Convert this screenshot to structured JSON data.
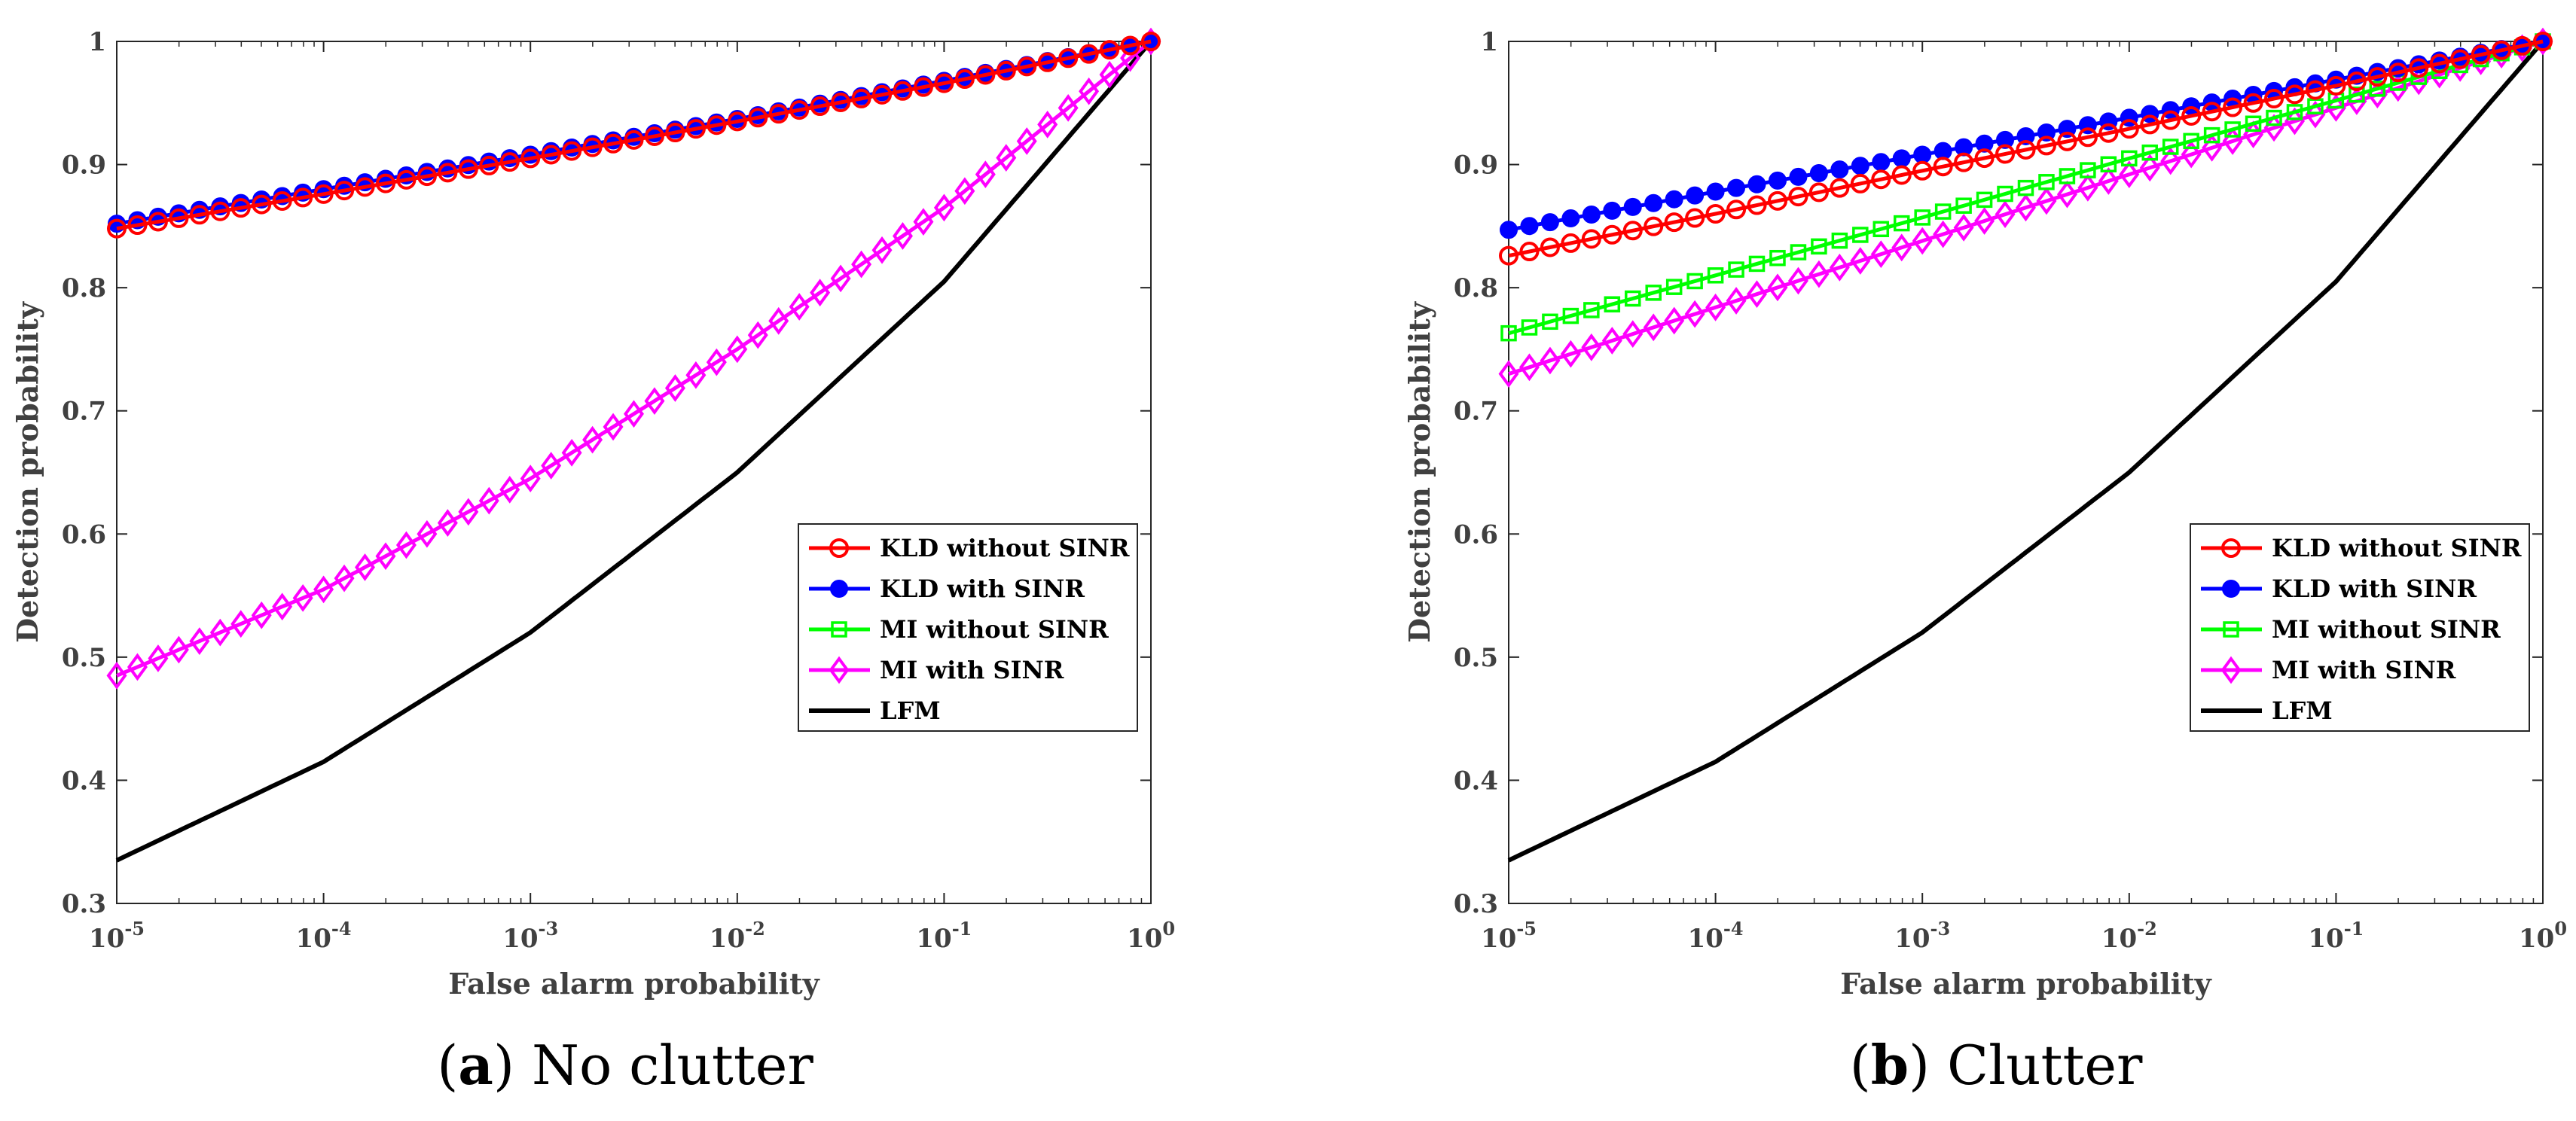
{
  "figure": {
    "captions": [
      {
        "letter": "a",
        "text": "No clutter"
      },
      {
        "letter": "b",
        "text": "Clutter"
      }
    ]
  },
  "colors": {
    "KLD without SINR": "#ff0000",
    "KLD with SINR": "#0000ff",
    "MI without SINR": "#00ff00",
    "MI with SINR": "#ff00ff",
    "LFM": "#000000",
    "axis": "#262626"
  },
  "chart_data": [
    {
      "type": "line",
      "panel": "a",
      "xscale": "log",
      "xlabel": "False alarm probability",
      "ylabel": "Detection probability",
      "xlim": [
        1e-05,
        1
      ],
      "ylim": [
        0.3,
        1
      ],
      "x_ticks": [
        {
          "base": "10",
          "exp": "-5"
        },
        {
          "base": "10",
          "exp": "-4"
        },
        {
          "base": "10",
          "exp": "-3"
        },
        {
          "base": "10",
          "exp": "-2"
        },
        {
          "base": "10",
          "exp": "-1"
        },
        {
          "base": "10",
          "exp": "0"
        }
      ],
      "y_ticks": [
        "0.3",
        "0.4",
        "0.5",
        "0.6",
        "0.7",
        "0.8",
        "0.9",
        "1"
      ],
      "legend_position": "lower-right",
      "series": [
        {
          "name": "KLD without SINR",
          "marker": "circle",
          "x": [
            1e-05,
            0.0001,
            0.001,
            0.01,
            0.1,
            1
          ],
          "y": [
            0.848,
            0.876,
            0.905,
            0.935,
            0.966,
            1.0
          ]
        },
        {
          "name": "KLD with SINR",
          "marker": "dot",
          "x": [
            1e-05,
            0.0001,
            0.001,
            0.01,
            0.1,
            1
          ],
          "y": [
            0.852,
            0.88,
            0.908,
            0.937,
            0.968,
            1.0
          ]
        },
        {
          "name": "MI without SINR",
          "marker": "square",
          "x": [],
          "y": []
        },
        {
          "name": "MI with SINR",
          "marker": "diamond",
          "x": [
            1e-05,
            0.0001,
            0.001,
            0.01,
            0.1,
            1
          ],
          "y": [
            0.485,
            0.555,
            0.645,
            0.75,
            0.865,
            1.0
          ]
        },
        {
          "name": "LFM",
          "marker": "none",
          "x": [
            1e-05,
            0.0001,
            0.001,
            0.01,
            0.1,
            1
          ],
          "y": [
            0.335,
            0.415,
            0.52,
            0.65,
            0.805,
            1.0
          ]
        }
      ]
    },
    {
      "type": "line",
      "panel": "b",
      "xscale": "log",
      "xlabel": "False alarm probability",
      "ylabel": "Detection probability",
      "xlim": [
        1e-05,
        1
      ],
      "ylim": [
        0.3,
        1
      ],
      "x_ticks": [
        {
          "base": "10",
          "exp": "-5"
        },
        {
          "base": "10",
          "exp": "-4"
        },
        {
          "base": "10",
          "exp": "-3"
        },
        {
          "base": "10",
          "exp": "-2"
        },
        {
          "base": "10",
          "exp": "-1"
        },
        {
          "base": "10",
          "exp": "0"
        }
      ],
      "y_ticks": [
        "0.3",
        "0.4",
        "0.5",
        "0.6",
        "0.7",
        "0.8",
        "0.9",
        "1"
      ],
      "legend_position": "lower-right",
      "series": [
        {
          "name": "KLD without SINR",
          "marker": "circle",
          "x": [
            1e-05,
            0.0001,
            0.001,
            0.01,
            0.1,
            1
          ],
          "y": [
            0.826,
            0.86,
            0.895,
            0.929,
            0.964,
            1.0
          ]
        },
        {
          "name": "KLD with SINR",
          "marker": "dot",
          "x": [
            1e-05,
            0.0001,
            0.001,
            0.01,
            0.1,
            1
          ],
          "y": [
            0.847,
            0.878,
            0.908,
            0.938,
            0.969,
            1.0
          ]
        },
        {
          "name": "MI without SINR",
          "marker": "square",
          "x": [
            1e-05,
            0.0001,
            0.001,
            0.01,
            0.1,
            1
          ],
          "y": [
            0.763,
            0.81,
            0.857,
            0.905,
            0.952,
            1.0
          ]
        },
        {
          "name": "MI with SINR",
          "marker": "diamond",
          "x": [
            1e-05,
            0.0001,
            0.001,
            0.01,
            0.1,
            1
          ],
          "y": [
            0.73,
            0.784,
            0.838,
            0.892,
            0.946,
            1.0
          ]
        },
        {
          "name": "LFM",
          "marker": "none",
          "x": [
            1e-05,
            0.0001,
            0.001,
            0.01,
            0.1,
            1
          ],
          "y": [
            0.335,
            0.415,
            0.52,
            0.65,
            0.805,
            1.0
          ]
        }
      ]
    }
  ]
}
